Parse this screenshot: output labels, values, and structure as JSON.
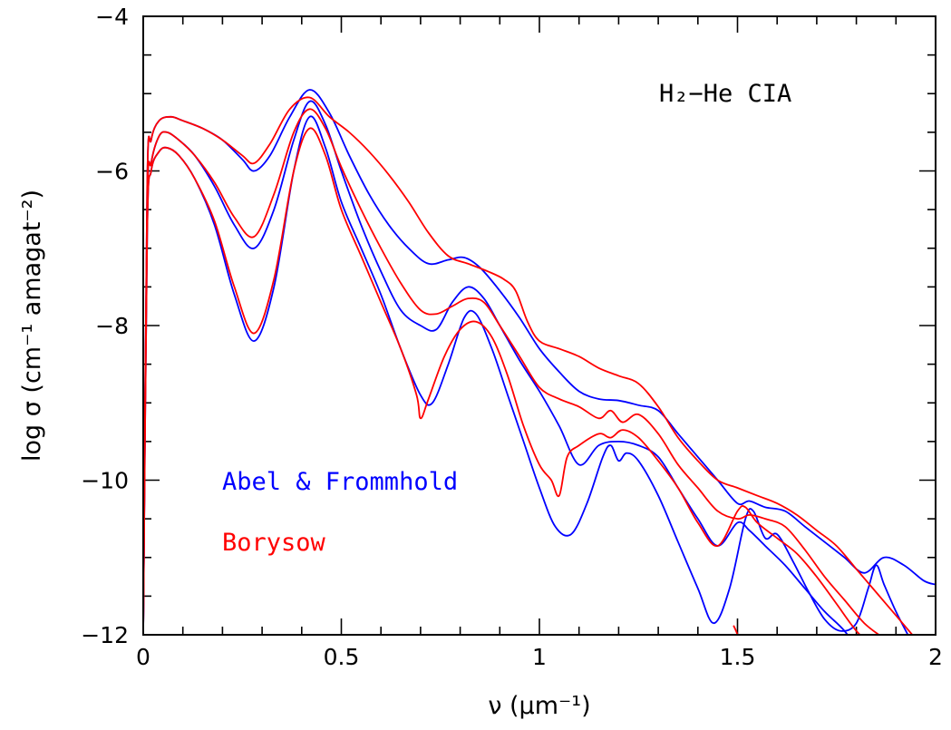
{
  "chart_data": {
    "type": "line",
    "xlabel": "ν (μm⁻¹)",
    "ylabel": "log σ (cm⁻¹ amagat⁻²)",
    "xlim": [
      0,
      2
    ],
    "ylim": [
      -12,
      -4
    ],
    "x_ticks": [
      "0",
      "0.5",
      "1",
      "1.5",
      "2"
    ],
    "y_ticks": [
      "−12",
      "−10",
      "−8",
      "−6",
      "−4"
    ],
    "grid": false,
    "annotations": {
      "title": "H₂−He CIA",
      "legend_blue": "Abel & Frommhold",
      "legend_red": "Borysow"
    },
    "colors": {
      "blue": "#0000ff",
      "red": "#ff0000"
    },
    "series": [
      {
        "color": "#0000ff",
        "x": [
          0.0,
          0.01,
          0.02,
          0.04,
          0.07,
          0.1,
          0.15,
          0.2,
          0.25,
          0.28,
          0.32,
          0.37,
          0.42,
          0.47,
          0.52,
          0.57,
          0.62,
          0.67,
          0.72,
          0.77,
          0.81,
          0.85,
          0.9,
          0.95,
          1.0,
          1.05,
          1.1,
          1.15,
          1.2,
          1.25,
          1.3,
          1.35,
          1.4,
          1.45,
          1.5,
          1.53,
          1.57,
          1.62,
          1.67,
          1.72,
          1.77,
          1.82,
          1.87,
          1.92,
          1.97,
          2.0
        ],
        "y": [
          -12.0,
          -6.2,
          -5.6,
          -5.35,
          -5.3,
          -5.35,
          -5.45,
          -5.6,
          -5.85,
          -6.0,
          -5.8,
          -5.3,
          -4.95,
          -5.25,
          -5.8,
          -6.3,
          -6.7,
          -7.0,
          -7.2,
          -7.15,
          -7.12,
          -7.25,
          -7.55,
          -7.9,
          -8.3,
          -8.6,
          -8.85,
          -8.95,
          -8.97,
          -9.03,
          -9.1,
          -9.4,
          -9.7,
          -10.0,
          -10.3,
          -10.27,
          -10.35,
          -10.4,
          -10.6,
          -10.8,
          -11.0,
          -11.2,
          -11.0,
          -11.1,
          -11.3,
          -11.35
        ]
      },
      {
        "color": "#0000ff",
        "x": [
          0.0,
          0.01,
          0.02,
          0.04,
          0.06,
          0.09,
          0.13,
          0.18,
          0.23,
          0.28,
          0.33,
          0.38,
          0.42,
          0.46,
          0.5,
          0.55,
          0.6,
          0.65,
          0.7,
          0.74,
          0.78,
          0.82,
          0.86,
          0.9,
          0.95,
          1.0,
          1.05,
          1.1,
          1.15,
          1.2,
          1.25,
          1.3,
          1.35,
          1.4,
          1.45,
          1.5,
          1.53,
          1.57,
          1.62,
          1.67,
          1.72,
          1.77,
          1.82,
          1.87,
          1.92,
          1.97
        ],
        "y": [
          -12.0,
          -6.5,
          -5.9,
          -5.55,
          -5.5,
          -5.6,
          -5.8,
          -6.2,
          -6.7,
          -7.0,
          -6.5,
          -5.6,
          -5.1,
          -5.4,
          -6.0,
          -6.7,
          -7.3,
          -7.8,
          -8.0,
          -8.05,
          -7.7,
          -7.5,
          -7.65,
          -8.0,
          -8.45,
          -8.85,
          -9.3,
          -9.8,
          -9.55,
          -9.5,
          -9.55,
          -9.7,
          -10.1,
          -10.5,
          -10.85,
          -10.55,
          -10.65,
          -10.85,
          -11.1,
          -11.4,
          -11.7,
          -11.95,
          -12.3,
          -12.6,
          -12.8,
          -13.0
        ]
      },
      {
        "color": "#0000ff",
        "x": [
          0.0,
          0.01,
          0.02,
          0.04,
          0.06,
          0.09,
          0.13,
          0.18,
          0.23,
          0.28,
          0.33,
          0.38,
          0.42,
          0.46,
          0.5,
          0.55,
          0.6,
          0.65,
          0.7,
          0.73,
          0.77,
          0.81,
          0.84,
          0.88,
          0.92,
          0.96,
          1.0,
          1.04,
          1.08,
          1.12,
          1.16,
          1.18,
          1.2,
          1.22,
          1.25,
          1.3,
          1.35,
          1.4,
          1.44,
          1.48,
          1.52,
          1.54,
          1.57,
          1.6,
          1.64,
          1.68,
          1.72,
          1.76,
          1.8,
          1.83,
          1.85,
          1.87,
          1.9,
          1.93,
          1.97
        ],
        "y": [
          -12.0,
          -6.8,
          -6.0,
          -5.75,
          -5.7,
          -5.8,
          -6.1,
          -6.7,
          -7.6,
          -8.2,
          -7.5,
          -6.0,
          -5.3,
          -5.7,
          -6.4,
          -7.0,
          -7.6,
          -8.3,
          -8.9,
          -9.0,
          -8.5,
          -7.9,
          -7.85,
          -8.3,
          -8.9,
          -9.5,
          -10.1,
          -10.6,
          -10.7,
          -10.3,
          -9.7,
          -9.55,
          -9.75,
          -9.65,
          -9.75,
          -10.2,
          -10.8,
          -11.4,
          -11.85,
          -11.4,
          -10.5,
          -10.4,
          -10.75,
          -10.7,
          -11.05,
          -11.45,
          -11.8,
          -11.95,
          -11.85,
          -11.4,
          -11.1,
          -11.35,
          -11.7,
          -12.0,
          -12.4
        ]
      },
      {
        "color": "#ff0000",
        "x": [
          0.0,
          0.01,
          0.02,
          0.04,
          0.07,
          0.1,
          0.15,
          0.2,
          0.25,
          0.28,
          0.32,
          0.37,
          0.42,
          0.47,
          0.52,
          0.57,
          0.62,
          0.67,
          0.72,
          0.77,
          0.82,
          0.87,
          0.91,
          0.94,
          0.97,
          1.0,
          1.05,
          1.1,
          1.15,
          1.2,
          1.25,
          1.3,
          1.35,
          1.4,
          1.45,
          1.5,
          1.55,
          1.6,
          1.65,
          1.7,
          1.75,
          1.8,
          1.85,
          1.9,
          1.95,
          1.98
        ],
        "y": [
          -12.0,
          -6.2,
          -5.6,
          -5.35,
          -5.3,
          -5.35,
          -5.45,
          -5.6,
          -5.8,
          -5.9,
          -5.65,
          -5.2,
          -5.05,
          -5.3,
          -5.5,
          -5.75,
          -6.05,
          -6.4,
          -6.8,
          -7.1,
          -7.2,
          -7.3,
          -7.4,
          -7.55,
          -7.95,
          -8.2,
          -8.3,
          -8.4,
          -8.55,
          -8.65,
          -8.75,
          -9.05,
          -9.45,
          -9.75,
          -10.0,
          -10.1,
          -10.2,
          -10.3,
          -10.45,
          -10.65,
          -10.85,
          -11.15,
          -11.45,
          -11.75,
          -12.05,
          -12.2
        ]
      },
      {
        "color": "#ff0000",
        "x": [
          0.0,
          0.01,
          0.02,
          0.04,
          0.06,
          0.09,
          0.13,
          0.18,
          0.23,
          0.28,
          0.33,
          0.38,
          0.42,
          0.46,
          0.5,
          0.55,
          0.6,
          0.65,
          0.7,
          0.74,
          0.78,
          0.82,
          0.86,
          0.9,
          0.95,
          1.0,
          1.05,
          1.1,
          1.15,
          1.18,
          1.21,
          1.25,
          1.3,
          1.35,
          1.4,
          1.45,
          1.5,
          1.53,
          1.57,
          1.62,
          1.67,
          1.72,
          1.77,
          1.82,
          1.87,
          1.92,
          1.97
        ],
        "y": [
          -12.0,
          -6.5,
          -5.9,
          -5.55,
          -5.5,
          -5.6,
          -5.8,
          -6.15,
          -6.6,
          -6.85,
          -6.3,
          -5.5,
          -5.2,
          -5.45,
          -5.95,
          -6.5,
          -7.0,
          -7.45,
          -7.8,
          -7.85,
          -7.75,
          -7.65,
          -7.7,
          -8.0,
          -8.4,
          -8.8,
          -8.95,
          -9.05,
          -9.2,
          -9.1,
          -9.25,
          -9.15,
          -9.4,
          -9.8,
          -10.1,
          -10.4,
          -10.5,
          -10.45,
          -10.5,
          -10.6,
          -10.9,
          -11.25,
          -11.55,
          -11.85,
          -12.05,
          -12.25,
          -12.5
        ]
      },
      {
        "color": "#ff0000",
        "x": [
          0.0,
          0.01,
          0.02,
          0.04,
          0.06,
          0.09,
          0.13,
          0.18,
          0.23,
          0.28,
          0.33,
          0.38,
          0.42,
          0.46,
          0.5,
          0.55,
          0.6,
          0.65,
          0.69,
          0.7,
          0.72,
          0.76,
          0.8,
          0.84,
          0.88,
          0.92,
          0.96,
          1.0,
          1.03,
          1.05,
          1.07,
          1.1,
          1.15,
          1.18,
          1.21,
          1.25,
          1.3,
          1.35,
          1.4,
          1.45,
          1.5,
          1.52,
          1.55,
          1.6,
          1.65,
          1.7,
          1.75,
          1.8,
          1.85,
          1.9,
          1.95,
          1.98
        ],
        "y": [
          -12.0,
          -6.8,
          -6.0,
          -5.75,
          -5.7,
          -5.8,
          -6.1,
          -6.65,
          -7.5,
          -8.1,
          -7.4,
          -6.0,
          -5.45,
          -5.8,
          -6.5,
          -7.1,
          -7.7,
          -8.3,
          -8.9,
          -9.2,
          -8.95,
          -8.4,
          -8.05,
          -7.95,
          -8.15,
          -8.65,
          -9.3,
          -9.8,
          -10.0,
          -10.2,
          -9.7,
          -9.55,
          -9.4,
          -9.45,
          -9.35,
          -9.45,
          -9.75,
          -10.1,
          -10.55,
          -10.85,
          -10.4,
          -10.35,
          -10.55,
          -10.75,
          -10.95,
          -11.25,
          -11.6,
          -11.95,
          -12.2,
          -12.5,
          -12.8,
          -13.0
        ]
      },
      {
        "color": "#ff0000",
        "x": [
          1.49,
          1.5,
          1.51
        ],
        "y": [
          -11.88,
          -12.0,
          -12.2
        ]
      }
    ]
  }
}
